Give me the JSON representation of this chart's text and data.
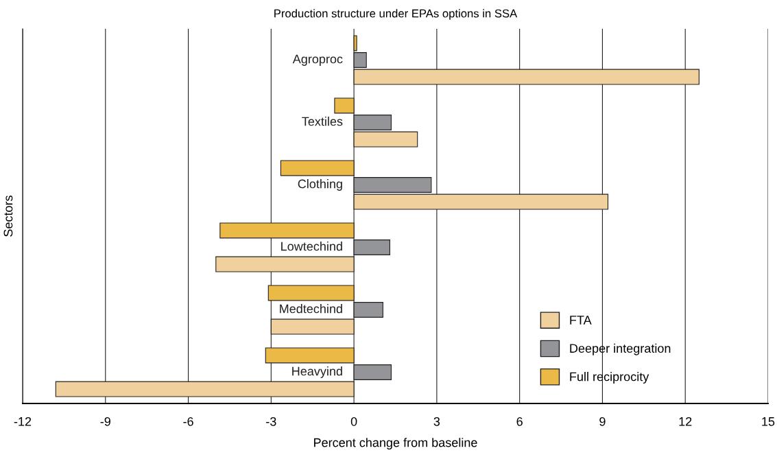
{
  "chart_data": {
    "type": "bar",
    "orientation": "horizontal",
    "title": "Production structure under EPAs options in SSA",
    "xlabel": "Percent change from baseline",
    "ylabel": "Sectors",
    "categories": [
      "Agroproc",
      "Textiles",
      "Clothing",
      "Lowtechind",
      "Medtechind",
      "Heavyind"
    ],
    "series": [
      {
        "name": "FTA",
        "color": "#f0d09c",
        "values": [
          12.5,
          2.3,
          9.2,
          -5.0,
          -3.0,
          -10.8
        ]
      },
      {
        "name": "Deeper integration",
        "color": "#939598",
        "values": [
          0.45,
          1.35,
          2.8,
          1.3,
          1.05,
          1.35
        ]
      },
      {
        "name": "Full reciprocity",
        "color": "#ebb946",
        "values": [
          0.1,
          -0.7,
          -2.65,
          -4.85,
          -3.1,
          -3.2
        ]
      }
    ],
    "xlim": [
      -12,
      15
    ],
    "xticks": [
      -12,
      -9,
      -6,
      -3,
      0,
      3,
      6,
      9,
      12,
      15
    ],
    "grid": "x",
    "legend": "bottom right"
  }
}
